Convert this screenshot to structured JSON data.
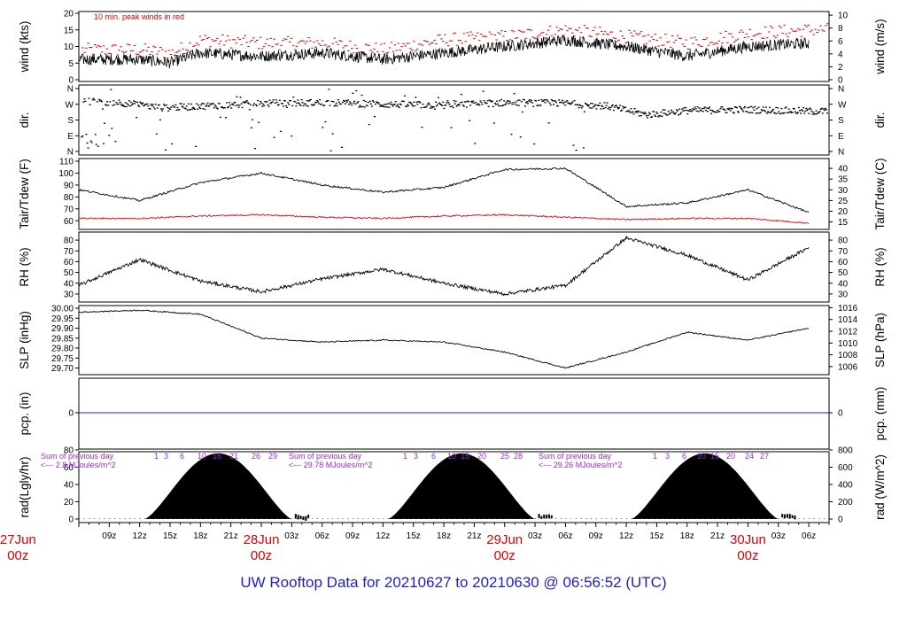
{
  "footer": {
    "title": "UW Rooftop Data for 20210627  to  20210630 @ 06:56:52  (UTC)"
  },
  "colors": {
    "black": "#000000",
    "red": "#e00000",
    "purple": "#9a2bd8",
    "blue": "#1f1fc8"
  },
  "time_axis": {
    "hour_labels": [
      "09z",
      "12z",
      "15z",
      "18z",
      "21z",
      "03z",
      "06z",
      "09z",
      "12z",
      "15z",
      "18z",
      "21z",
      "03z",
      "06z",
      "09z",
      "12z",
      "15z",
      "18z",
      "21z",
      "03z",
      "06z"
    ],
    "day_labels": [
      {
        "date": "27Jun",
        "hour": "00z"
      },
      {
        "date": "28Jun",
        "hour": "00z"
      },
      {
        "date": "29Jun",
        "hour": "00z"
      },
      {
        "date": "30Jun",
        "hour": "00z"
      }
    ]
  },
  "chart_data": [
    {
      "type": "line",
      "id": "wind",
      "ylabel_left": "wind (kts)",
      "ylabel_right": "wind (m/s)",
      "ylim": [
        0,
        20
      ],
      "yticks_left": [
        "0",
        "5",
        "10",
        "15",
        "20"
      ],
      "yticks_right": [
        "0",
        "2",
        "4",
        "6",
        "8",
        "10"
      ],
      "annotation": "10 min. peak winds in red",
      "x": [
        6,
        12,
        15,
        18,
        24,
        30,
        36,
        42,
        48,
        54,
        60,
        66,
        72,
        78
      ],
      "series": [
        {
          "values": [
            6,
            6,
            5,
            8,
            7,
            8,
            6,
            8,
            10,
            12,
            10,
            7,
            10,
            11
          ]
        },
        {
          "values": [
            9,
            9,
            8,
            12,
            11,
            11,
            9,
            12,
            13,
            15,
            13,
            11,
            14,
            15
          ]
        }
      ]
    },
    {
      "type": "scatter",
      "id": "dir",
      "ylabel_left": "dir.",
      "ylabel_right": "dir.",
      "yticks_left": [
        "N",
        "W",
        "S",
        "E",
        "N"
      ],
      "yticks_right": [
        "N",
        "W",
        "S",
        "E",
        "N"
      ]
    },
    {
      "type": "line",
      "id": "temp",
      "ylabel_left": "Tair/Tdew (F)",
      "ylabel_right": "Tair/Tdew (C)",
      "ylim": [
        55,
        110
      ],
      "yticks_left": [
        "60",
        "70",
        "80",
        "90",
        "100",
        "110"
      ],
      "yticks_right": [
        "15",
        "20",
        "25",
        "30",
        "35",
        "40"
      ],
      "x": [
        6,
        12,
        18,
        24,
        30,
        36,
        42,
        48,
        54,
        60,
        66,
        72,
        78
      ],
      "series": [
        {
          "values": [
            86,
            77,
            92,
            100,
            90,
            84,
            88,
            103,
            104,
            72,
            75,
            86,
            67
          ]
        },
        {
          "values": [
            62,
            62,
            64,
            65,
            63,
            62,
            64,
            65,
            63,
            61,
            62,
            62,
            58
          ]
        }
      ]
    },
    {
      "type": "line",
      "id": "rh",
      "ylabel_left": "RH (%)",
      "ylabel_right": "RH (%)",
      "ylim": [
        25,
        85
      ],
      "yticks_left": [
        "30",
        "40",
        "50",
        "60",
        "70",
        "80"
      ],
      "yticks_right": [
        "30",
        "40",
        "50",
        "60",
        "70",
        "80"
      ],
      "x": [
        6,
        12,
        18,
        24,
        30,
        36,
        42,
        48,
        54,
        60,
        66,
        72,
        78
      ],
      "series": [
        {
          "values": [
            38,
            62,
            42,
            32,
            44,
            53,
            40,
            30,
            38,
            82,
            66,
            43,
            73
          ]
        }
      ]
    },
    {
      "type": "line",
      "id": "slp",
      "ylabel_left": "SLP (inHg)",
      "ylabel_right": "SLP (hPa)",
      "ylim": [
        29.68,
        30.0
      ],
      "yticks_left": [
        "29.70",
        "29.75",
        "29.80",
        "29.85",
        "29.90",
        "29.95",
        "30.00"
      ],
      "yticks_right": [
        "1006",
        "1008",
        "1010",
        "1012",
        "1014",
        "1016"
      ],
      "x": [
        6,
        12,
        18,
        24,
        30,
        36,
        42,
        48,
        54,
        60,
        66,
        72,
        78
      ],
      "series": [
        {
          "values": [
            29.98,
            29.99,
            29.97,
            29.85,
            29.83,
            29.84,
            29.83,
            29.78,
            29.7,
            29.78,
            29.88,
            29.84,
            29.9
          ]
        }
      ]
    },
    {
      "type": "line",
      "id": "pcp",
      "ylabel_left": "pcp. (in)",
      "ylabel_right": "pcp. (mm)",
      "yticks_left": [
        "0"
      ],
      "yticks_right": [
        "0"
      ],
      "x": [
        6,
        78
      ],
      "series": [
        {
          "values": [
            0,
            0
          ]
        }
      ]
    },
    {
      "type": "area",
      "id": "rad",
      "ylabel_left": "rad(Lgly/hr)",
      "ylabel_right": "rad (W/m^2)",
      "ylim": [
        0,
        80
      ],
      "yticks_left": [
        "0",
        "20",
        "40",
        "60",
        "80"
      ],
      "yticks_right": [
        "0",
        "200",
        "400",
        "600",
        "800"
      ],
      "daily_notes": [
        {
          "line1": "Sum of previous day",
          "line2": "<--- 2.8 MJoules/m^2",
          "hours": [
            "1",
            "3",
            "6",
            "10",
            "16",
            "21",
            "26",
            "29"
          ]
        },
        {
          "line1": "Sum of previous day",
          "line2": "<--- 29.78 MJoules/m^2",
          "hours": [
            "1",
            "3",
            "6",
            "10",
            "15",
            "20",
            "25",
            "28"
          ]
        },
        {
          "line1": "Sum of previous day",
          "line2": "<--- 29.26 MJoules/m^2",
          "hours": [
            "1",
            "3",
            "6",
            "10",
            "15",
            "20",
            "24",
            "27"
          ]
        }
      ],
      "peak_value": 76
    }
  ]
}
